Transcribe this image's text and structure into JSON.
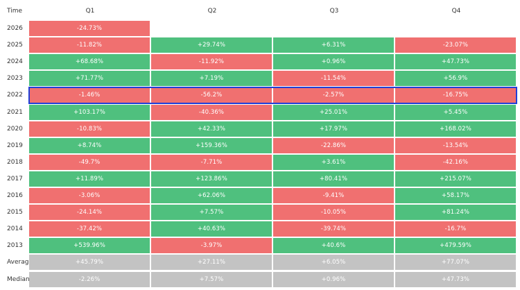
{
  "colors": {
    "positive": "#4fc07e",
    "negative": "#f07070",
    "summary": "#c3c3c3",
    "highlight": "#1f3fd8"
  },
  "chart_data": {
    "type": "heatmap",
    "corner_label": "Time",
    "columns": [
      "Q1",
      "Q2",
      "Q3",
      "Q4"
    ],
    "highlighted_row": "2022",
    "rows": [
      {
        "label": "2026",
        "cells": [
          "-24.73%",
          null,
          null,
          null
        ],
        "values": [
          -24.73,
          null,
          null,
          null
        ]
      },
      {
        "label": "2025",
        "cells": [
          "-11.82%",
          "+29.74%",
          "+6.31%",
          "-23.07%"
        ],
        "values": [
          -11.82,
          29.74,
          6.31,
          -23.07
        ]
      },
      {
        "label": "2024",
        "cells": [
          "+68.68%",
          "-11.92%",
          "+0.96%",
          "+47.73%"
        ],
        "values": [
          68.68,
          -11.92,
          0.96,
          47.73
        ]
      },
      {
        "label": "2023",
        "cells": [
          "+71.77%",
          "+7.19%",
          "-11.54%",
          "+56.9%"
        ],
        "values": [
          71.77,
          7.19,
          -11.54,
          56.9
        ]
      },
      {
        "label": "2022",
        "cells": [
          "-1.46%",
          "-56.2%",
          "-2.57%",
          "-16.75%"
        ],
        "values": [
          -1.46,
          -56.2,
          -2.57,
          -16.75
        ]
      },
      {
        "label": "2021",
        "cells": [
          "+103.17%",
          "-40.36%",
          "+25.01%",
          "+5.45%"
        ],
        "values": [
          103.17,
          -40.36,
          25.01,
          5.45
        ]
      },
      {
        "label": "2020",
        "cells": [
          "-10.83%",
          "+42.33%",
          "+17.97%",
          "+168.02%"
        ],
        "values": [
          -10.83,
          42.33,
          17.97,
          168.02
        ]
      },
      {
        "label": "2019",
        "cells": [
          "+8.74%",
          "+159.36%",
          "-22.86%",
          "-13.54%"
        ],
        "values": [
          8.74,
          159.36,
          -22.86,
          -13.54
        ]
      },
      {
        "label": "2018",
        "cells": [
          "-49.7%",
          "-7.71%",
          "+3.61%",
          "-42.16%"
        ],
        "values": [
          -49.7,
          -7.71,
          3.61,
          -42.16
        ]
      },
      {
        "label": "2017",
        "cells": [
          "+11.89%",
          "+123.86%",
          "+80.41%",
          "+215.07%"
        ],
        "values": [
          11.89,
          123.86,
          80.41,
          215.07
        ]
      },
      {
        "label": "2016",
        "cells": [
          "-3.06%",
          "+62.06%",
          "-9.41%",
          "+58.17%"
        ],
        "values": [
          -3.06,
          62.06,
          -9.41,
          58.17
        ]
      },
      {
        "label": "2015",
        "cells": [
          "-24.14%",
          "+7.57%",
          "-10.05%",
          "+81.24%"
        ],
        "values": [
          -24.14,
          7.57,
          -10.05,
          81.24
        ]
      },
      {
        "label": "2014",
        "cells": [
          "-37.42%",
          "+40.63%",
          "-39.74%",
          "-16.7%"
        ],
        "values": [
          -37.42,
          40.63,
          -39.74,
          -16.7
        ]
      },
      {
        "label": "2013",
        "cells": [
          "+539.96%",
          "-3.97%",
          "+40.6%",
          "+479.59%"
        ],
        "values": [
          539.96,
          -3.97,
          40.6,
          479.59
        ]
      },
      {
        "label": "Average",
        "summary": true,
        "cells": [
          "+45.79%",
          "+27.11%",
          "+6.05%",
          "+77.07%"
        ],
        "values": [
          45.79,
          27.11,
          6.05,
          77.07
        ]
      },
      {
        "label": "Median",
        "summary": true,
        "cells": [
          "-2.26%",
          "+7.57%",
          "+0.96%",
          "+47.73%"
        ],
        "values": [
          -2.26,
          7.57,
          0.96,
          47.73
        ]
      }
    ]
  }
}
